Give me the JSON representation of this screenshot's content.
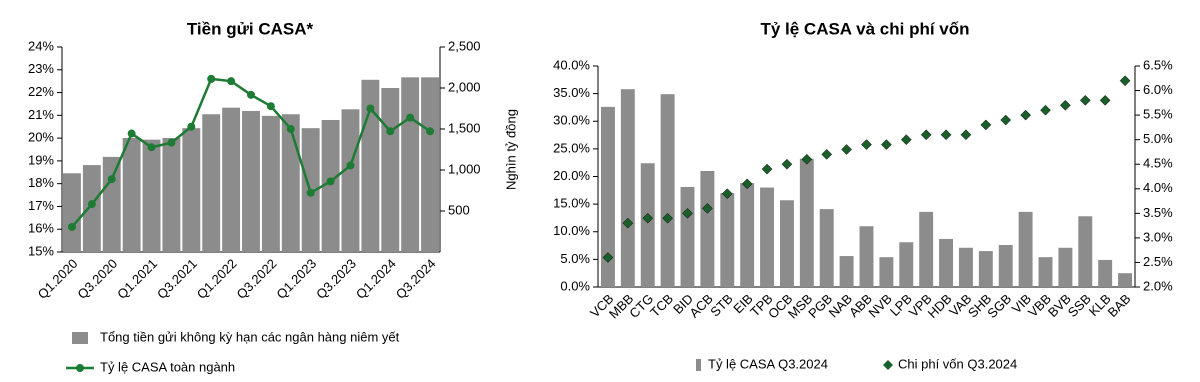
{
  "chart_data": [
    {
      "type": "combo",
      "title": "Tiền gửi CASA*",
      "y2label": "Nghìn tỷ đồng",
      "categories": [
        "Q1.2020",
        null,
        "Q3.2020",
        null,
        "Q1.2021",
        null,
        "Q3.2021",
        null,
        "Q1.2022",
        null,
        "Q3.2022",
        null,
        "Q1.2023",
        null,
        "Q3.2023",
        null,
        "Q1.2024",
        null,
        "Q3.2024"
      ],
      "ylim": [
        15,
        24
      ],
      "yticks": [
        {
          "value": 15,
          "label": "15%"
        },
        {
          "value": 16,
          "label": "16%"
        },
        {
          "value": 17,
          "label": "17%"
        },
        {
          "value": 18,
          "label": "18%"
        },
        {
          "value": 19,
          "label": "19%"
        },
        {
          "value": 20,
          "label": "20%"
        },
        {
          "value": 21,
          "label": "21%"
        },
        {
          "value": 22,
          "label": "22%"
        },
        {
          "value": 23,
          "label": "23%"
        },
        {
          "value": 24,
          "label": "24%"
        }
      ],
      "y2lim": [
        0,
        2500
      ],
      "y2ticks": [
        {
          "value": 500,
          "label": "500"
        },
        {
          "value": 1000,
          "label": "1,000"
        },
        {
          "value": 1500,
          "label": "1,500"
        },
        {
          "value": 2000,
          "label": "2,000"
        },
        {
          "value": 2500,
          "label": "2,500"
        }
      ],
      "legend": "bottom-stacked",
      "series": [
        {
          "name": "Tổng tiền gửi không kỳ hạn các ngân hàng niêm yết",
          "kind": "bar",
          "axis": "y2",
          "color": "#8c8c8c",
          "values": [
            960,
            1060,
            1160,
            1390,
            1370,
            1390,
            1510,
            1680,
            1760,
            1720,
            1660,
            1680,
            1510,
            1610,
            1740,
            2100,
            2000,
            2130,
            2130
          ]
        },
        {
          "name": "Tỷ lệ CASA toàn ngành",
          "kind": "line",
          "marker": "circle",
          "color": "#1e7b34",
          "values": [
            16.1,
            17.1,
            18.2,
            20.2,
            19.6,
            19.8,
            20.5,
            22.6,
            22.5,
            21.9,
            21.4,
            20.4,
            17.6,
            18.1,
            18.8,
            21.3,
            20.3,
            20.9,
            20.3
          ]
        }
      ]
    },
    {
      "type": "combo",
      "title": "Tỷ lệ CASA và chi phí vốn",
      "categories": [
        "VCB",
        "MBB",
        "CTG",
        "TCB",
        "BID",
        "ACB",
        "STB",
        "EIB",
        "TPB",
        "OCB",
        "MSB",
        "PGB",
        "NAB",
        "ABB",
        "NVB",
        "LPB",
        "VPB",
        "HDB",
        "VAB",
        "SHB",
        "SGB",
        "VIB",
        "VBB",
        "BVB",
        "SSB",
        "KLB",
        "BAB"
      ],
      "ylim": [
        0,
        40
      ],
      "yticks": [
        {
          "value": 0,
          "label": "0.0%"
        },
        {
          "value": 5,
          "label": "5.0%"
        },
        {
          "value": 10,
          "label": "10.0%"
        },
        {
          "value": 15,
          "label": "15.0%"
        },
        {
          "value": 20,
          "label": "20.0%"
        },
        {
          "value": 25,
          "label": "25.0%"
        },
        {
          "value": 30,
          "label": "30.0%"
        },
        {
          "value": 35,
          "label": "35.0%"
        },
        {
          "value": 40,
          "label": "40.0%"
        }
      ],
      "y2lim": [
        2,
        6.5
      ],
      "y2ticks": [
        {
          "value": 2,
          "label": "2.0%"
        },
        {
          "value": 2.5,
          "label": "2.5%"
        },
        {
          "value": 3,
          "label": "3.0%"
        },
        {
          "value": 3.5,
          "label": "3.5%"
        },
        {
          "value": 4,
          "label": "4.0%"
        },
        {
          "value": 4.5,
          "label": "4.5%"
        },
        {
          "value": 5,
          "label": "5.0%"
        },
        {
          "value": 5.5,
          "label": "5.5%"
        },
        {
          "value": 6,
          "label": "6.0%"
        },
        {
          "value": 6.5,
          "label": "6.5%"
        }
      ],
      "legend": "bottom-row",
      "series": [
        {
          "name": "Tỷ lệ CASA Q3.2024",
          "kind": "bar",
          "color": "#8c8c8c",
          "values": [
            32.6,
            35.8,
            22.4,
            34.9,
            18.1,
            21.0,
            17.0,
            18.8,
            18.0,
            15.7,
            23.2,
            14.1,
            5.6,
            11.0,
            5.4,
            8.1,
            13.6,
            8.7,
            7.1,
            6.5,
            7.6,
            13.6,
            5.4,
            7.1,
            12.8,
            4.9,
            2.5
          ]
        },
        {
          "name": "Chi phí vốn Q3.2024",
          "kind": "scatter",
          "marker": "diamond",
          "axis": "y2",
          "color": "#1a5e2a",
          "values": [
            2.6,
            3.3,
            3.4,
            3.4,
            3.5,
            3.6,
            3.9,
            4.1,
            4.4,
            4.5,
            4.6,
            4.7,
            4.8,
            4.9,
            4.9,
            5.0,
            5.1,
            5.1,
            5.1,
            5.3,
            5.4,
            5.5,
            5.6,
            5.7,
            5.8,
            5.8,
            6.2
          ]
        }
      ]
    }
  ]
}
